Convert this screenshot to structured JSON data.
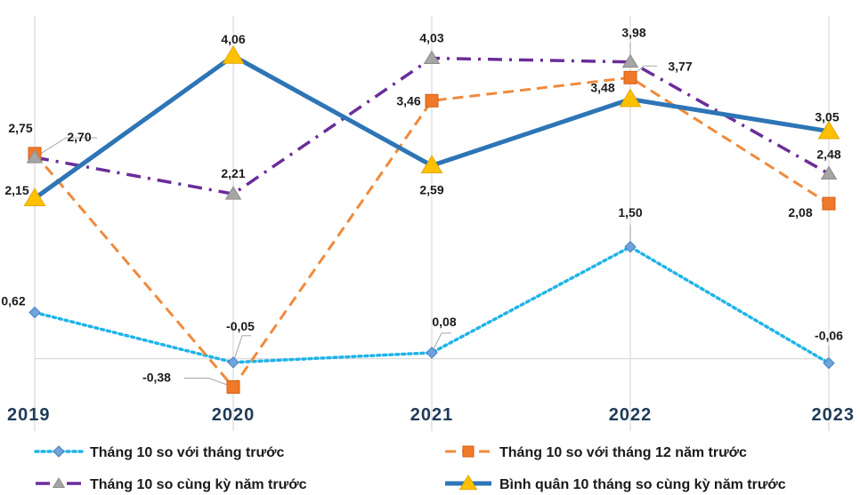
{
  "chart_data": {
    "type": "line",
    "x": [
      "2019",
      "2020",
      "2021",
      "2022",
      "2023"
    ],
    "ylim": [
      -0.5,
      4.5
    ],
    "grid": "vertical",
    "legend": "bottom",
    "series": [
      {
        "name": "Tháng 10 so với tháng trước",
        "values": [
          0.62,
          -0.05,
          0.08,
          1.5,
          -0.06
        ],
        "labels": [
          "0,62",
          "-0,05",
          "0,08",
          "1,50",
          "-0,06"
        ],
        "color": "#1fb4e8",
        "marker": "diamond",
        "marker_color": "#6fa3dc",
        "dash": "dotted"
      },
      {
        "name": "Tháng 10 so với tháng 12 năm trước",
        "values": [
          2.75,
          -0.38,
          3.46,
          3.77,
          2.08
        ],
        "labels": [
          "2,75",
          "-0,38",
          "3,46",
          "3,77",
          "2,08"
        ],
        "color": "#f08a3c",
        "marker": "square",
        "marker_color": "#f07a2a",
        "dash": "dashed"
      },
      {
        "name": "Tháng 10 so cùng kỳ năm trước",
        "values": [
          2.7,
          2.21,
          4.03,
          3.98,
          2.48
        ],
        "labels": [
          "2,70",
          "2,21",
          "4,03",
          "3,98",
          "2,48"
        ],
        "color": "#6a2d9a",
        "marker": "triangle",
        "marker_color": "#a5a5a5",
        "dash": "dashdot"
      },
      {
        "name": "Bình quân 10 tháng so cùng kỳ năm trước",
        "values": [
          2.15,
          4.06,
          2.59,
          3.48,
          3.05
        ],
        "labels": [
          "2,15",
          "4,06",
          "2,59",
          "3,48",
          "3,05"
        ],
        "color": "#2e75b6",
        "marker": "triangle",
        "marker_color": "#ffc000",
        "dash": "solid"
      }
    ]
  }
}
